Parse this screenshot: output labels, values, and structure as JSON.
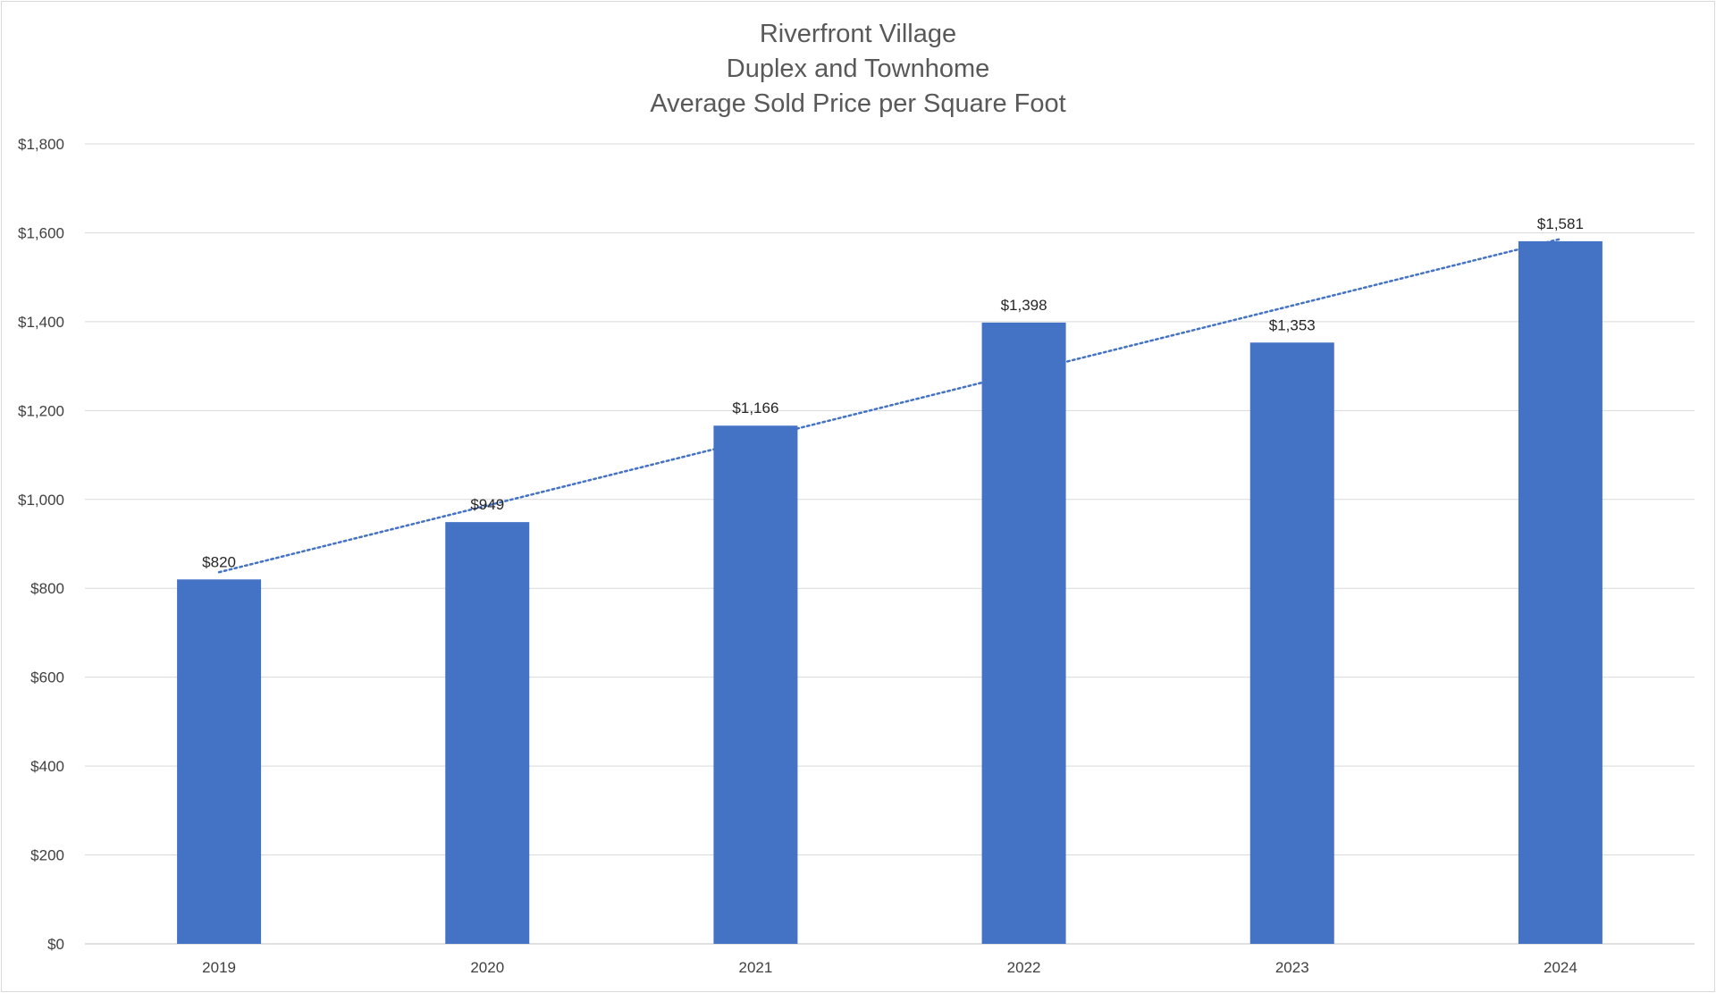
{
  "chart_data": {
    "type": "bar",
    "title": [
      "Riverfront Village",
      "Duplex and Townhome",
      "Average Sold Price per Square Foot"
    ],
    "categories": [
      "2019",
      "2020",
      "2021",
      "2022",
      "2023",
      "2024"
    ],
    "values": [
      820,
      949,
      1166,
      1398,
      1353,
      1581
    ],
    "value_labels": [
      "$820",
      "$949",
      "$1,166",
      "$1,398",
      "$1,353",
      "$1,581"
    ],
    "y_ticks": [
      "$0",
      "$200",
      "$400",
      "$600",
      "$800",
      "$1,000",
      "$1,200",
      "$1,400",
      "$1,600",
      "$1,800"
    ],
    "ylim": [
      0,
      1800
    ],
    "xlabel": "",
    "ylabel": "",
    "grid": true,
    "legend": "none",
    "trendline": {
      "type": "linear",
      "style": "dotted"
    },
    "colors": {
      "bar": "#4472C4",
      "trendline": "#4472C4",
      "grid": "#d9d9d9",
      "axis": "#bfbfbf"
    }
  }
}
